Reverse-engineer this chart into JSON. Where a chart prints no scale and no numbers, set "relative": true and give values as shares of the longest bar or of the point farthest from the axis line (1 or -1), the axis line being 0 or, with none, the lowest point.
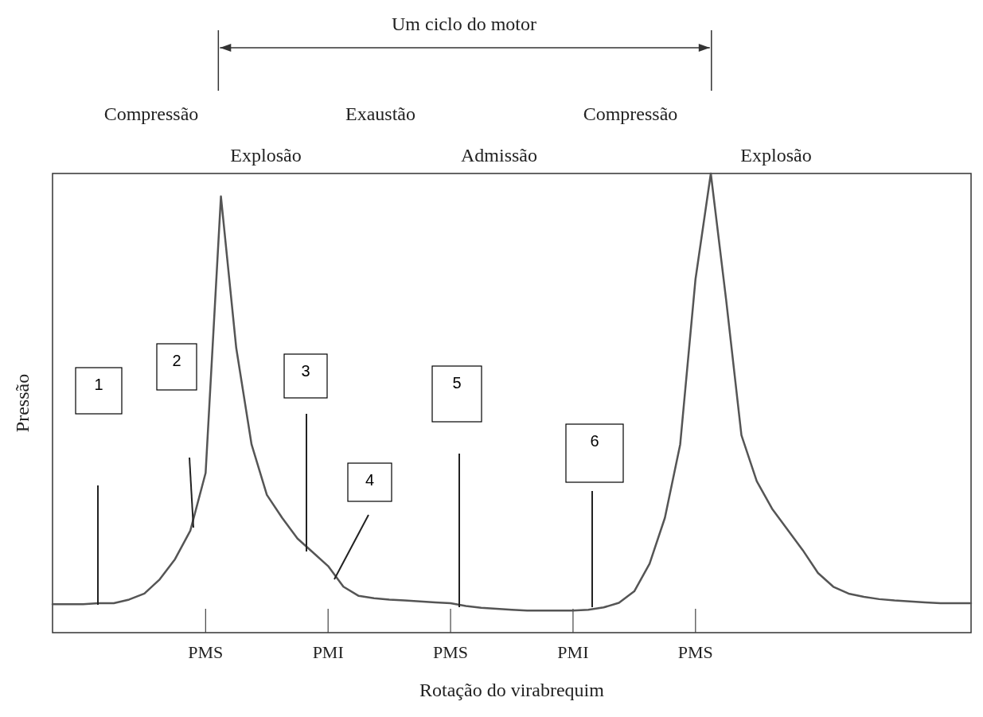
{
  "chart_data": {
    "type": "line",
    "relative": true,
    "xlabel": "Rotação do virabrequim",
    "ylabel": "Pressão",
    "categories": [
      null,
      null,
      null,
      null,
      null,
      null,
      null,
      null,
      null,
      null,
      "PMS",
      null,
      null,
      null,
      null,
      null,
      null,
      null,
      "PMI",
      null,
      null,
      null,
      null,
      null,
      null,
      null,
      "PMS",
      null,
      null,
      null,
      null,
      null,
      null,
      null,
      "PMI",
      null,
      null,
      null,
      null,
      null,
      null,
      null,
      "PMS",
      null,
      null,
      null,
      null,
      null,
      null,
      null,
      null,
      null,
      null,
      null,
      null,
      null,
      null,
      null,
      null,
      null,
      null
    ],
    "grid": false,
    "marker": "none",
    "line_style": "solid",
    "series": [
      {
        "color": "#555555",
        "values": [
          0.062,
          0.062,
          0.062,
          0.064,
          0.064,
          0.072,
          0.085,
          0.116,
          0.16,
          0.222,
          0.348,
          0.95,
          0.62,
          0.41,
          0.3,
          0.25,
          0.205,
          0.175,
          0.145,
          0.1,
          0.08,
          0.075,
          0.072,
          0.07,
          0.068,
          0.066,
          0.064,
          0.058,
          0.054,
          0.052,
          0.05,
          0.048,
          0.048,
          0.048,
          0.048,
          0.05,
          0.055,
          0.065,
          0.09,
          0.15,
          0.25,
          0.41,
          0.77,
          1,
          0.725,
          0.43,
          0.33,
          0.27,
          0.225,
          0.18,
          0.13,
          0.1,
          0.085,
          0.078,
          0.073,
          0.07,
          0.068,
          0.066,
          0.064,
          0.064,
          0.064
        ]
      }
    ],
    "annotations": [
      "Um ciclo do motor",
      "Compressão",
      "Explosão",
      "Exaustão",
      "Admissão",
      "Compressão",
      "Explosão",
      "1",
      "2",
      "3",
      "4",
      "5",
      "6"
    ]
  }
}
